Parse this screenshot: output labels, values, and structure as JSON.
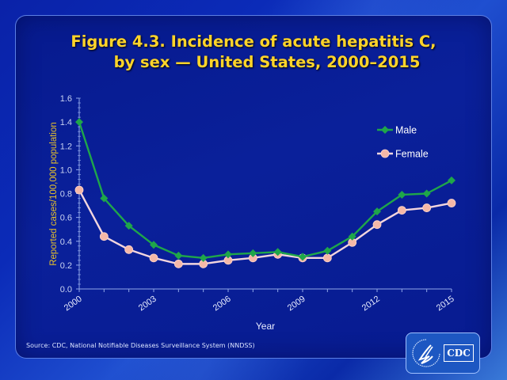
{
  "slide": {
    "title_line1": "Figure 4.3. Incidence of acute hepatitis C,",
    "title_line2": "by sex — United States, 2000–2015",
    "source": "Source: CDC, National Notifiable Diseases Surveillance System (NNDSS)",
    "logo_text": "CDC",
    "logo_icon": "hhs-eagle-icon"
  },
  "colors": {
    "title": "#ffd42a",
    "ylabel": "#e6c02a",
    "male": "#1fa64a",
    "female": "#f5b8a8",
    "female_line": "#f3d6de",
    "axis": "#8fa6e8",
    "tick_label": "#c9d3f2"
  },
  "chart_data": {
    "type": "line",
    "title": "Figure 4.3. Incidence of acute hepatitis C, by sex — United States, 2000–2015",
    "xlabel": "Year",
    "ylabel": "Reported cases/100,000 population",
    "x": [
      2000,
      2001,
      2002,
      2003,
      2004,
      2005,
      2006,
      2007,
      2008,
      2009,
      2010,
      2011,
      2012,
      2013,
      2014,
      2015
    ],
    "x_tick_labels": [
      "2000",
      "2003",
      "2006",
      "2009",
      "2012",
      "2015"
    ],
    "x_tick_values": [
      2000,
      2003,
      2006,
      2009,
      2012,
      2015
    ],
    "ylim": [
      0,
      1.6
    ],
    "y_ticks": [
      "0.0",
      "0.2",
      "0.4",
      "0.6",
      "0.8",
      "1.0",
      "1.2",
      "1.4",
      "1.6"
    ],
    "grid": false,
    "legend_position": "top-right",
    "series": [
      {
        "name": "Male",
        "marker": "diamond",
        "values": [
          1.4,
          0.76,
          0.53,
          0.37,
          0.28,
          0.26,
          0.29,
          0.3,
          0.31,
          0.27,
          0.32,
          0.44,
          0.65,
          0.79,
          0.8,
          0.91
        ]
      },
      {
        "name": "Female",
        "marker": "circle",
        "values": [
          0.83,
          0.44,
          0.33,
          0.26,
          0.21,
          0.21,
          0.24,
          0.26,
          0.29,
          0.26,
          0.26,
          0.39,
          0.54,
          0.66,
          0.68,
          0.72
        ]
      }
    ]
  }
}
